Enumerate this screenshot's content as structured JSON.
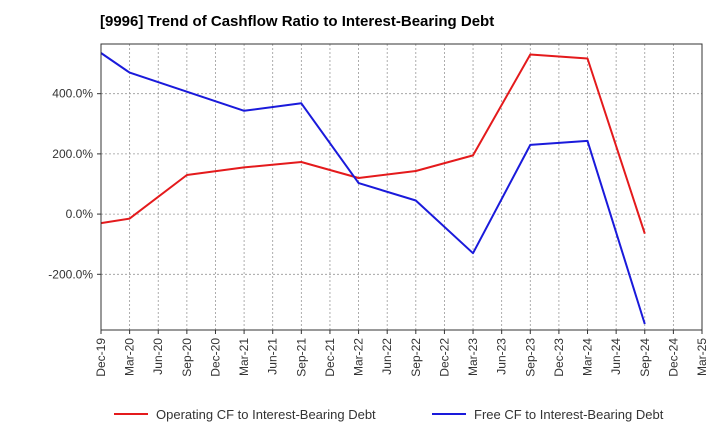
{
  "chart_data": {
    "type": "line",
    "title": "[9996]  Trend of Cashflow Ratio to Interest-Bearing Debt",
    "categories": [
      "Dec-19",
      "Mar-20",
      "Jun-20",
      "Sep-20",
      "Dec-20",
      "Mar-21",
      "Jun-21",
      "Sep-21",
      "Dec-21",
      "Mar-22",
      "Jun-22",
      "Sep-22",
      "Dec-22",
      "Mar-23",
      "Jun-23",
      "Sep-23",
      "Dec-23",
      "Mar-24",
      "Jun-24",
      "Sep-24",
      "Dec-24",
      "Mar-25"
    ],
    "y_ticks": [
      -200,
      0,
      200,
      400
    ],
    "y_tick_labels": [
      "-200.0%",
      "0.0%",
      "200.0%",
      "400.0%"
    ],
    "ylim": [
      -385,
      565
    ],
    "grid": true,
    "legend_position": "bottom",
    "series": [
      {
        "name": "Operating CF to Interest-Bearing Debt",
        "color": "#e41a1c",
        "values": [
          -30,
          -15,
          null,
          130,
          null,
          155,
          null,
          173,
          null,
          120,
          null,
          143,
          null,
          195,
          null,
          530,
          null,
          517,
          null,
          -65,
          null,
          null
        ]
      },
      {
        "name": "Free CF to Interest-Bearing Debt",
        "color": "#1a1adb",
        "values": [
          535,
          470,
          null,
          null,
          null,
          343,
          null,
          368,
          null,
          103,
          null,
          45,
          null,
          -130,
          null,
          230,
          null,
          243,
          null,
          -365,
          null,
          null
        ]
      }
    ]
  }
}
